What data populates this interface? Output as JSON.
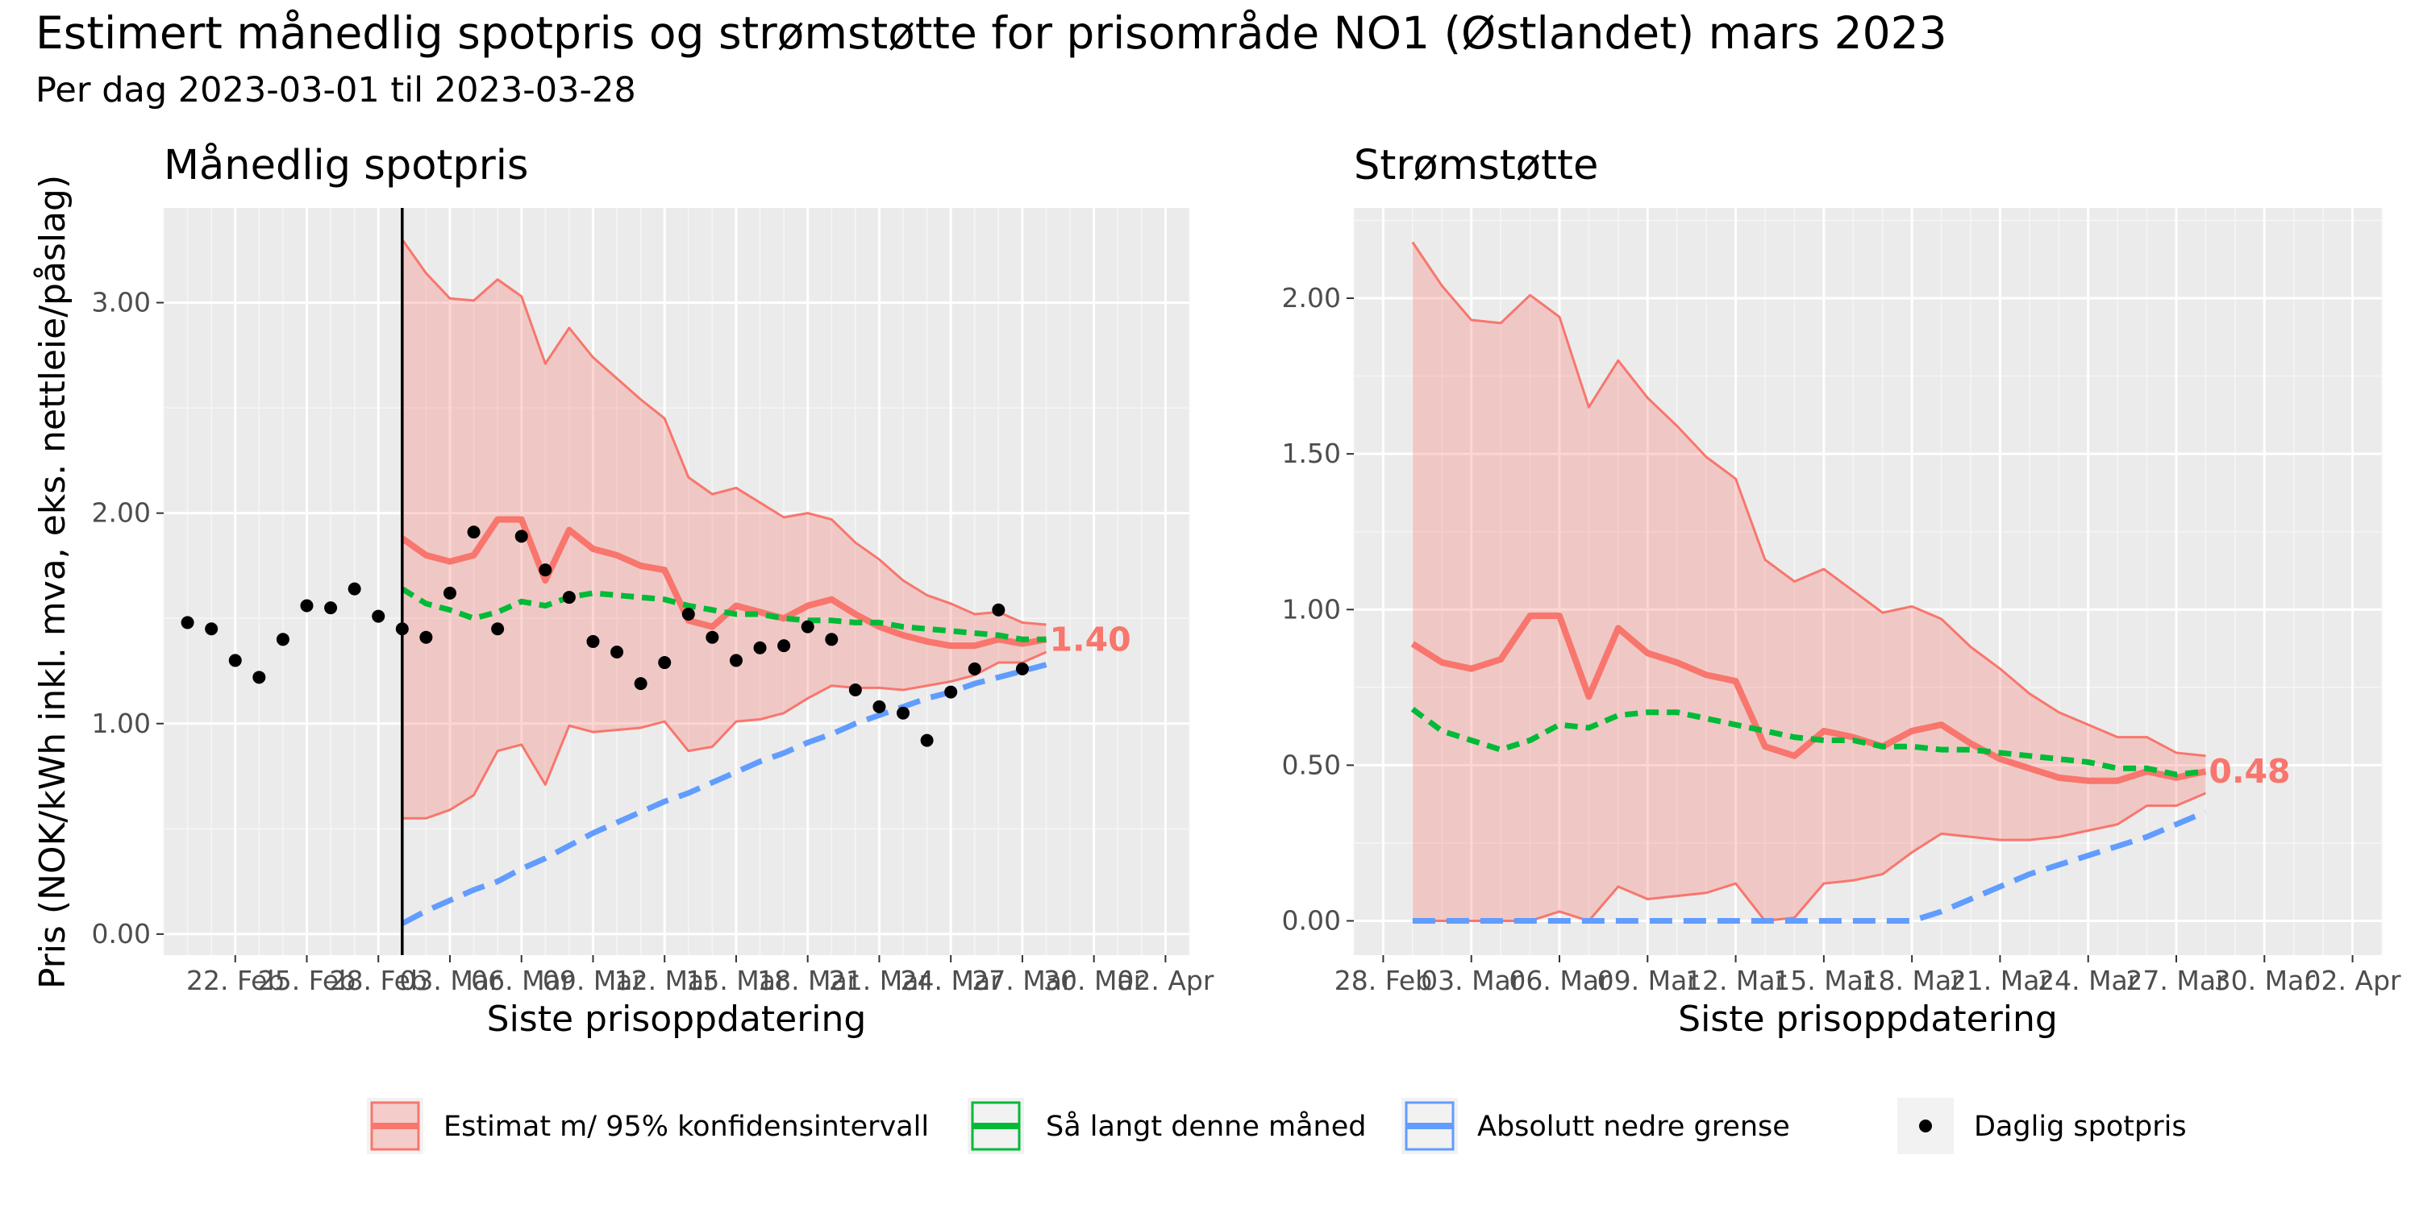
{
  "title": "Estimert månedlig spotpris og strømstøtte for prisområde NO1 (Østlandet)  mars 2023",
  "subtitle": "Per dag 2023-03-01 til 2023-03-28",
  "legend": {
    "position": "bottom",
    "items": [
      {
        "label": "Estimat m/ 95% konfidensintervall",
        "color": "#F8766D"
      },
      {
        "label": "Så langt denne måned",
        "color": "#00BA38"
      },
      {
        "label": "Absolutt nedre grense",
        "color": "#619CFF"
      },
      {
        "label": "Daglig spotpris",
        "color": "#000000"
      }
    ]
  },
  "colors": {
    "estimate": "#F8766D",
    "band": "#F8766D",
    "sofar": "#00BA38",
    "lower": "#619CFF",
    "points": "#000000",
    "panel": "#EBEBEB"
  },
  "chart_data": [
    {
      "type": "line",
      "title": "Månedlig spotpris",
      "xlabel": "Siste prisoppdatering",
      "ylabel": "Pris (NOK/kWh inkl. mva, eks. nettleie/påslag)",
      "x_ticks": [
        "22. Feb",
        "25. Feb",
        "28. Feb",
        "03. Mar",
        "06. Mar",
        "09. Mar",
        "12. Mar",
        "15. Mar",
        "18. Mar",
        "21. Mar",
        "24. Mar",
        "27. Mar",
        "30. Mar",
        "02. Apr"
      ],
      "y_ticks": [
        "0.00",
        "1.00",
        "2.00",
        "3.00"
      ],
      "ylim": [
        -0.1,
        3.45
      ],
      "xlim": [
        "2023-02-19",
        "2023-04-03"
      ],
      "vline_x": "2023-03-01",
      "end_label": "1.40",
      "x": [
        "2023-03-01",
        "2023-03-02",
        "2023-03-03",
        "2023-03-04",
        "2023-03-05",
        "2023-03-06",
        "2023-03-07",
        "2023-03-08",
        "2023-03-09",
        "2023-03-10",
        "2023-03-11",
        "2023-03-12",
        "2023-03-13",
        "2023-03-14",
        "2023-03-15",
        "2023-03-16",
        "2023-03-17",
        "2023-03-18",
        "2023-03-19",
        "2023-03-20",
        "2023-03-21",
        "2023-03-22",
        "2023-03-23",
        "2023-03-24",
        "2023-03-25",
        "2023-03-26",
        "2023-03-27",
        "2023-03-28"
      ],
      "series": [
        {
          "name": "Estimat m/ 95% konfidensintervall",
          "values": [
            1.88,
            1.8,
            1.77,
            1.8,
            1.97,
            1.97,
            1.68,
            1.92,
            1.83,
            1.8,
            1.75,
            1.73,
            1.49,
            1.46,
            1.56,
            1.53,
            1.5,
            1.56,
            1.59,
            1.52,
            1.46,
            1.42,
            1.39,
            1.37,
            1.37,
            1.4,
            1.38,
            1.4
          ],
          "lower": [
            0.55,
            0.55,
            0.59,
            0.66,
            0.87,
            0.9,
            0.71,
            0.99,
            0.96,
            0.97,
            0.98,
            1.01,
            0.87,
            0.89,
            1.01,
            1.02,
            1.05,
            1.12,
            1.18,
            1.17,
            1.17,
            1.16,
            1.18,
            1.2,
            1.23,
            1.29,
            1.29,
            1.34
          ],
          "upper": [
            3.3,
            3.14,
            3.02,
            3.01,
            3.11,
            3.03,
            2.71,
            2.88,
            2.74,
            2.64,
            2.54,
            2.45,
            2.17,
            2.09,
            2.12,
            2.05,
            1.98,
            2.0,
            1.97,
            1.86,
            1.78,
            1.68,
            1.61,
            1.57,
            1.52,
            1.53,
            1.48,
            1.47
          ]
        },
        {
          "name": "Så langt denne måned",
          "values": [
            1.64,
            1.57,
            1.54,
            1.5,
            1.53,
            1.58,
            1.56,
            1.6,
            1.62,
            1.61,
            1.6,
            1.59,
            1.56,
            1.54,
            1.52,
            1.52,
            1.5,
            1.49,
            1.49,
            1.48,
            1.48,
            1.46,
            1.45,
            1.44,
            1.43,
            1.42,
            1.4,
            1.4
          ]
        },
        {
          "name": "Absolutt nedre grense",
          "values": [
            0.05,
            0.11,
            0.16,
            0.21,
            0.25,
            0.31,
            0.36,
            0.42,
            0.48,
            0.53,
            0.58,
            0.63,
            0.67,
            0.72,
            0.77,
            0.82,
            0.86,
            0.91,
            0.95,
            1.0,
            1.04,
            1.08,
            1.12,
            1.15,
            1.19,
            1.22,
            1.25,
            1.28
          ]
        }
      ],
      "points": {
        "name": "Daglig spotpris",
        "x": [
          "2023-02-20",
          "2023-02-21",
          "2023-02-22",
          "2023-02-23",
          "2023-02-24",
          "2023-02-25",
          "2023-02-26",
          "2023-02-27",
          "2023-02-28",
          "2023-03-01",
          "2023-03-02",
          "2023-03-03",
          "2023-03-04",
          "2023-03-05",
          "2023-03-06",
          "2023-03-07",
          "2023-03-08",
          "2023-03-09",
          "2023-03-10",
          "2023-03-11",
          "2023-03-12",
          "2023-03-13",
          "2023-03-14",
          "2023-03-15",
          "2023-03-16",
          "2023-03-17",
          "2023-03-18",
          "2023-03-19",
          "2023-03-20",
          "2023-03-21",
          "2023-03-22",
          "2023-03-23",
          "2023-03-24",
          "2023-03-25",
          "2023-03-26",
          "2023-03-27"
        ],
        "y": [
          1.48,
          1.45,
          1.3,
          1.22,
          1.4,
          1.56,
          1.55,
          1.64,
          1.51,
          1.45,
          1.41,
          1.62,
          1.91,
          1.45,
          1.89,
          1.73,
          1.6,
          1.39,
          1.34,
          1.19,
          1.29,
          1.52,
          1.41,
          1.3,
          1.36,
          1.37,
          1.46,
          1.4,
          1.16,
          1.08,
          1.05,
          0.92,
          1.15,
          1.26,
          1.54,
          1.26
        ]
      }
    },
    {
      "type": "line",
      "title": "Strømstøtte",
      "xlabel": "Siste prisoppdatering",
      "ylabel": "",
      "x_ticks": [
        "28. Feb",
        "03. Mar",
        "06. Mar",
        "09. Mar",
        "12. Mar",
        "15. Mar",
        "18. Mar",
        "21. Mar",
        "24. Mar",
        "27. Mar",
        "30. Mar",
        "02. Apr"
      ],
      "y_ticks": [
        "0.00",
        "0.50",
        "1.00",
        "1.50",
        "2.00"
      ],
      "ylim": [
        -0.11,
        2.29
      ],
      "xlim": [
        "2023-02-27",
        "2023-04-03"
      ],
      "end_label": "0.48",
      "x": [
        "2023-03-01",
        "2023-03-02",
        "2023-03-03",
        "2023-03-04",
        "2023-03-05",
        "2023-03-06",
        "2023-03-07",
        "2023-03-08",
        "2023-03-09",
        "2023-03-10",
        "2023-03-11",
        "2023-03-12",
        "2023-03-13",
        "2023-03-14",
        "2023-03-15",
        "2023-03-16",
        "2023-03-17",
        "2023-03-18",
        "2023-03-19",
        "2023-03-20",
        "2023-03-21",
        "2023-03-22",
        "2023-03-23",
        "2023-03-24",
        "2023-03-25",
        "2023-03-26",
        "2023-03-27",
        "2023-03-28"
      ],
      "series": [
        {
          "name": "Estimat m/ 95% konfidensintervall",
          "values": [
            0.89,
            0.83,
            0.81,
            0.84,
            0.98,
            0.98,
            0.72,
            0.94,
            0.86,
            0.83,
            0.79,
            0.77,
            0.56,
            0.53,
            0.61,
            0.59,
            0.56,
            0.61,
            0.63,
            0.57,
            0.52,
            0.49,
            0.46,
            0.45,
            0.45,
            0.48,
            0.46,
            0.48
          ],
          "lower": [
            0.0,
            0.0,
            0.0,
            0.0,
            0.0,
            0.03,
            0.0,
            0.11,
            0.07,
            0.08,
            0.09,
            0.12,
            0.0,
            0.01,
            0.12,
            0.13,
            0.15,
            0.22,
            0.28,
            0.27,
            0.26,
            0.26,
            0.27,
            0.29,
            0.31,
            0.37,
            0.37,
            0.41
          ],
          "upper": [
            2.18,
            2.04,
            1.93,
            1.92,
            2.01,
            1.94,
            1.65,
            1.8,
            1.68,
            1.59,
            1.49,
            1.42,
            1.16,
            1.09,
            1.13,
            1.06,
            0.99,
            1.01,
            0.97,
            0.88,
            0.81,
            0.73,
            0.67,
            0.63,
            0.59,
            0.59,
            0.54,
            0.53
          ]
        },
        {
          "name": "Så langt denne måned",
          "values": [
            0.68,
            0.61,
            0.58,
            0.55,
            0.58,
            0.63,
            0.62,
            0.66,
            0.67,
            0.67,
            0.65,
            0.63,
            0.61,
            0.59,
            0.58,
            0.58,
            0.56,
            0.56,
            0.55,
            0.55,
            0.54,
            0.53,
            0.52,
            0.51,
            0.49,
            0.49,
            0.47,
            0.48
          ]
        },
        {
          "name": "Absolutt nedre grense",
          "values": [
            0.0,
            0.0,
            0.0,
            0.0,
            0.0,
            0.0,
            0.0,
            0.0,
            0.0,
            0.0,
            0.0,
            0.0,
            0.0,
            0.0,
            0.0,
            0.0,
            0.0,
            0.0,
            0.03,
            0.07,
            0.11,
            0.15,
            0.18,
            0.21,
            0.24,
            0.27,
            0.31,
            0.35
          ]
        }
      ]
    }
  ]
}
